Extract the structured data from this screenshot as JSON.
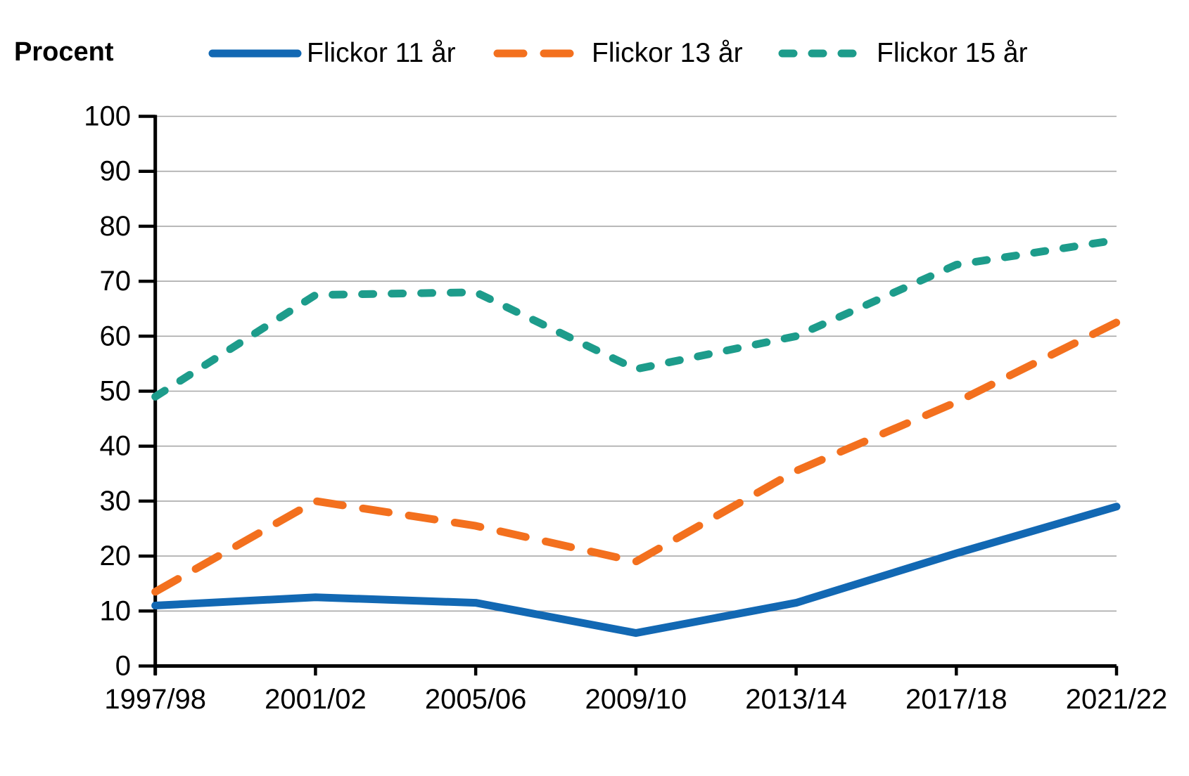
{
  "chart_data": {
    "type": "line",
    "title": "",
    "ylabel": "Procent",
    "xlabel": "",
    "ylim": [
      0,
      100
    ],
    "ytick_step": 10,
    "grid": true,
    "legend_position": "top",
    "categories": [
      "1997/98",
      "2001/02",
      "2005/06",
      "2009/10",
      "2013/14",
      "2017/18",
      "2021/22"
    ],
    "series": [
      {
        "name": "Flickor 11 år",
        "color": "#1268b3",
        "dash": "solid",
        "values": [
          11,
          12.5,
          11.5,
          6,
          11.5,
          20.5,
          29
        ]
      },
      {
        "name": "Flickor 13 år",
        "color": "#f3701e",
        "dash": "long-dash",
        "values": [
          13.5,
          30,
          25.5,
          19,
          35.5,
          48,
          62.5
        ]
      },
      {
        "name": "Flickor 15 år",
        "color": "#1d9c8b",
        "dash": "short-dash",
        "values": [
          49,
          67.5,
          68,
          54,
          60,
          73,
          77.5
        ]
      }
    ],
    "colors": {
      "axis": "#000000",
      "gridline": "#a8a8a8",
      "background": "#ffffff",
      "text": "#000000"
    }
  }
}
